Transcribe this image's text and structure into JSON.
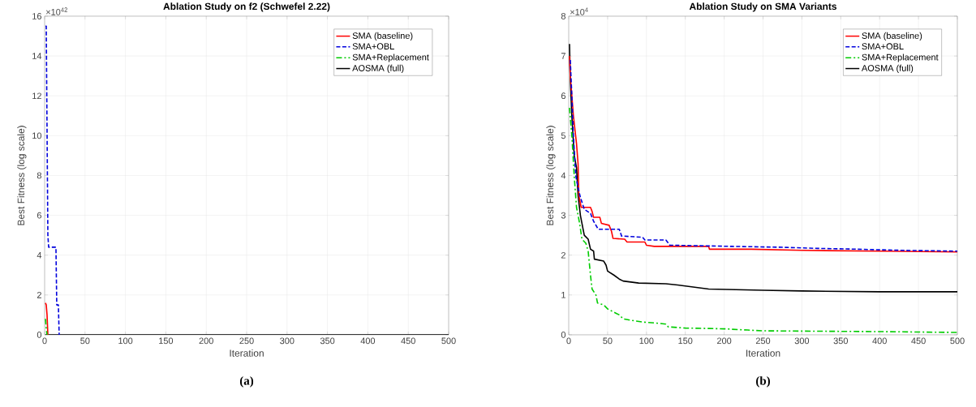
{
  "chart_data": [
    {
      "type": "line",
      "title": "Ablation Study on f2 (Schwefel 2.22)",
      "xlabel": "Iteration",
      "ylabel": "Best Fitness (log scale)",
      "annotations": [
        "×10$^{42}$",
        "**(a)**"
      ],
      "xlim": [
        0,
        500
      ],
      "ylim": [
        0,
        16
      ],
      "xticks": [
        0,
        50,
        100,
        150,
        200,
        250,
        300,
        350,
        400,
        450,
        500
      ],
      "yticks": [
        0,
        2,
        4,
        6,
        8,
        10,
        12,
        14,
        16
      ],
      "grid": true,
      "legend": "top right",
      "marker": "none",
      "series": [
        {
          "name": "SMA (baseline)",
          "color": "#ff0000",
          "line_style": "solid",
          "x": [
            1,
            2,
            3,
            4
          ],
          "values": [
            1.6,
            1.5,
            1.0,
            0
          ]
        },
        {
          "name": "SMA+OBL",
          "color": "#0000dd",
          "line_style": "dashed",
          "x": [
            1,
            2,
            4,
            5,
            14,
            15,
            17,
            18
          ],
          "values": [
            15.5,
            15.5,
            5,
            4.4,
            4.4,
            1.5,
            1.5,
            0
          ]
        },
        {
          "name": "SMA+Replacement",
          "color": "#00cc00",
          "line_style": "dashdot",
          "x": [
            1,
            2,
            3
          ],
          "values": [
            0.8,
            0.3,
            0
          ]
        },
        {
          "name": "AOSMA (full)",
          "color": "#000000",
          "line_style": "solid",
          "x": [
            1,
            500
          ],
          "values": [
            0,
            0
          ]
        }
      ]
    },
    {
      "type": "line",
      "title": "Ablation Study on SMA Variants",
      "xlabel": "Iteration",
      "ylabel": "Best Fitness (log scale)",
      "annotations": [
        "×10$^{4}$",
        "**(b)**"
      ],
      "xlim": [
        0,
        500
      ],
      "ylim": [
        0,
        8
      ],
      "xticks": [
        0,
        50,
        100,
        150,
        200,
        250,
        300,
        350,
        400,
        450,
        500
      ],
      "yticks": [
        0,
        1,
        2,
        3,
        4,
        5,
        6,
        7,
        8
      ],
      "grid": true,
      "legend": "top right",
      "marker": "none",
      "series": [
        {
          "name": "SMA (baseline)",
          "color": "#ff0000",
          "line_style": "solid",
          "x": [
            1,
            2,
            6,
            10,
            12,
            13,
            16,
            28,
            30,
            32,
            40,
            42,
            52,
            55,
            57,
            72,
            75,
            98,
            100,
            110,
            180,
            181,
            235,
            300,
            400,
            500
          ],
          "values": [
            7.0,
            6.5,
            5.5,
            4.8,
            4.3,
            3.5,
            3.2,
            3.2,
            3.1,
            2.95,
            2.95,
            2.8,
            2.75,
            2.6,
            2.42,
            2.4,
            2.33,
            2.33,
            2.25,
            2.22,
            2.22,
            2.15,
            2.15,
            2.12,
            2.1,
            2.08
          ]
        },
        {
          "name": "SMA+OBL",
          "color": "#0000dd",
          "line_style": "dashed",
          "x": [
            2,
            4,
            6,
            9,
            12,
            15,
            20,
            28,
            32,
            38,
            65,
            68,
            95,
            98,
            125,
            130,
            210,
            270,
            320,
            370,
            430,
            500
          ],
          "values": [
            6.9,
            6.0,
            5.0,
            4.0,
            3.7,
            3.45,
            3.15,
            3.05,
            2.85,
            2.65,
            2.65,
            2.48,
            2.45,
            2.38,
            2.38,
            2.25,
            2.22,
            2.2,
            2.17,
            2.15,
            2.12,
            2.1
          ]
        },
        {
          "name": "SMA+Replacement",
          "color": "#00cc00",
          "line_style": "dashdot",
          "x": [
            1,
            4,
            7,
            10,
            14,
            17,
            22,
            25,
            28,
            30,
            35,
            37,
            45,
            50,
            60,
            65,
            70,
            85,
            95,
            110,
            125,
            128,
            150,
            200,
            230,
            250,
            400,
            500
          ],
          "values": [
            5.7,
            5.0,
            4.0,
            3.2,
            2.8,
            2.4,
            2.3,
            2.1,
            1.5,
            1.15,
            1.0,
            0.8,
            0.75,
            0.65,
            0.55,
            0.5,
            0.4,
            0.35,
            0.32,
            0.3,
            0.27,
            0.2,
            0.17,
            0.15,
            0.12,
            0.1,
            0.08,
            0.06
          ]
        },
        {
          "name": "AOSMA (full)",
          "color": "#000000",
          "line_style": "solid",
          "x": [
            1,
            2,
            4,
            7,
            10,
            12,
            15,
            20,
            25,
            28,
            32,
            33,
            45,
            48,
            50,
            58,
            65,
            70,
            90,
            125,
            140,
            160,
            180,
            250,
            300,
            400,
            500
          ],
          "values": [
            7.3,
            6.4,
            5.5,
            4.5,
            4.2,
            3.5,
            3.0,
            2.5,
            2.4,
            2.15,
            2.1,
            1.9,
            1.85,
            1.75,
            1.6,
            1.5,
            1.4,
            1.35,
            1.3,
            1.28,
            1.25,
            1.2,
            1.15,
            1.12,
            1.1,
            1.08,
            1.08
          ]
        }
      ]
    }
  ]
}
